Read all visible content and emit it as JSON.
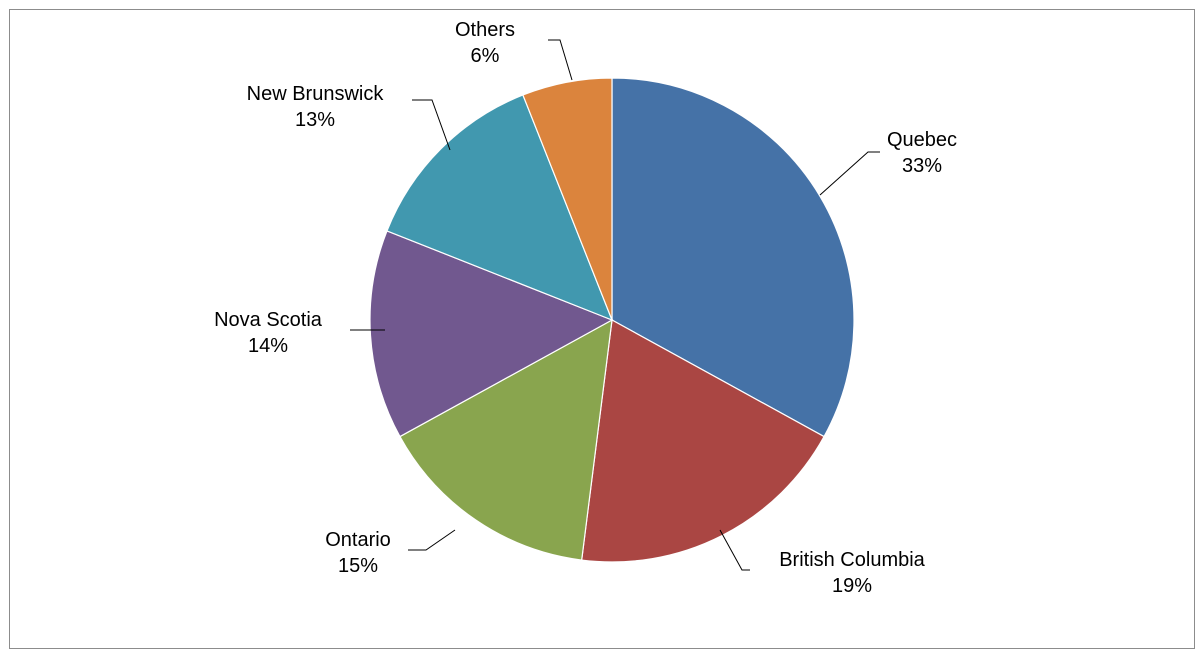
{
  "chart_data": {
    "type": "pie",
    "start_angle_deg": 0,
    "direction": "clockwise",
    "slices": [
      {
        "label": "Quebec",
        "value": 33,
        "pct_label": "33%",
        "color": "#4572A7"
      },
      {
        "label": "British Columbia",
        "value": 19,
        "pct_label": "19%",
        "color": "#AA4643"
      },
      {
        "label": "Ontario",
        "value": 15,
        "pct_label": "15%",
        "color": "#89A54E"
      },
      {
        "label": "Nova Scotia",
        "value": 14,
        "pct_label": "14%",
        "color": "#71588F"
      },
      {
        "label": "New Brunswick",
        "value": 13,
        "pct_label": "13%",
        "color": "#4198AF"
      },
      {
        "label": "Others",
        "value": 6,
        "pct_label": "6%",
        "color": "#DB843D"
      }
    ],
    "data_labels": "outside-with-leader-lines",
    "legend": "none"
  }
}
